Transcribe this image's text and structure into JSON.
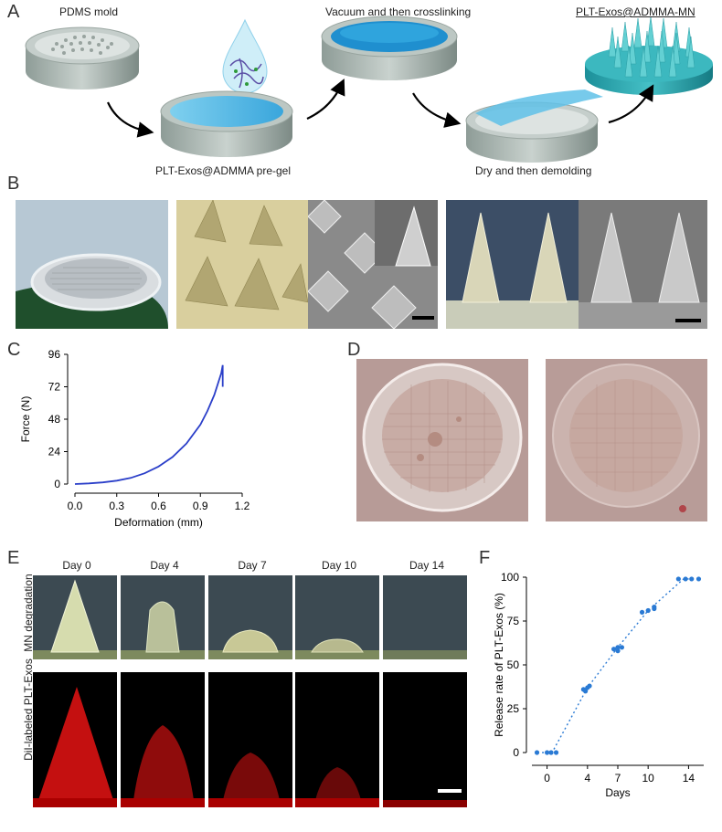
{
  "panels": {
    "A": "A",
    "B": "B",
    "C": "C",
    "D": "D",
    "E": "E",
    "F": "F"
  },
  "panelA": {
    "step1": "PDMS mold",
    "step2": "PLT-Exos@ADMMA pre-gel",
    "step3": "Vacuum and then crosslinking",
    "step4": "Dry and then demolding",
    "step5": "PLT-Exos@ADMMA-MN"
  },
  "panelE": {
    "days": [
      "Day 0",
      "Day 4",
      "Day 7",
      "Day 10",
      "Day 14"
    ],
    "row1": "MN degradation",
    "row2": "DiI-labeled PLT-Exos"
  },
  "chart_data": [
    {
      "type": "line",
      "xlabel": "Deformation (mm)",
      "ylabel": "Force (N)",
      "xticks": [
        "0.0",
        "0.3",
        "0.6",
        "0.9",
        "1.2"
      ],
      "yticks": [
        "0",
        "24",
        "48",
        "72",
        "96"
      ],
      "xlim": [
        0,
        1.2
      ],
      "ylim": [
        0,
        96
      ],
      "color": "#2b3fc9",
      "x": [
        0.0,
        0.1,
        0.2,
        0.3,
        0.4,
        0.5,
        0.6,
        0.7,
        0.8,
        0.9,
        0.95,
        1.0,
        1.05,
        1.06,
        1.06
      ],
      "y": [
        0,
        0.5,
        1.2,
        2.5,
        4.5,
        8,
        13,
        20,
        30,
        44,
        54,
        66,
        82,
        88,
        72
      ]
    },
    {
      "type": "scatter",
      "xlabel": "Days",
      "ylabel": "Release rate of PLT-Exos (%)",
      "xticks": [
        "0",
        "4",
        "7",
        "10",
        "14"
      ],
      "yticks": [
        "0",
        "25",
        "50",
        "75",
        "100"
      ],
      "xlim": [
        -1.5,
        15.5
      ],
      "ylim": [
        0,
        100
      ],
      "color": "#2a7ad4",
      "points": [
        [
          -1,
          0
        ],
        [
          0,
          0
        ],
        [
          0.4,
          0
        ],
        [
          0.9,
          0
        ],
        [
          3.6,
          36
        ],
        [
          4,
          37
        ],
        [
          4.2,
          38
        ],
        [
          3.8,
          35
        ],
        [
          6.6,
          59
        ],
        [
          7,
          60
        ],
        [
          7.4,
          60
        ],
        [
          7,
          58
        ],
        [
          9.4,
          80
        ],
        [
          10,
          81
        ],
        [
          10.6,
          83
        ],
        [
          10.6,
          82
        ],
        [
          13,
          99
        ],
        [
          13.7,
          99
        ],
        [
          14.3,
          99
        ],
        [
          15,
          99
        ]
      ],
      "fit": [
        [
          -0.5,
          0
        ],
        [
          0.5,
          0
        ],
        [
          4,
          37
        ],
        [
          7,
          60
        ],
        [
          10,
          81
        ],
        [
          13.5,
          99
        ],
        [
          14.5,
          99
        ]
      ]
    }
  ]
}
